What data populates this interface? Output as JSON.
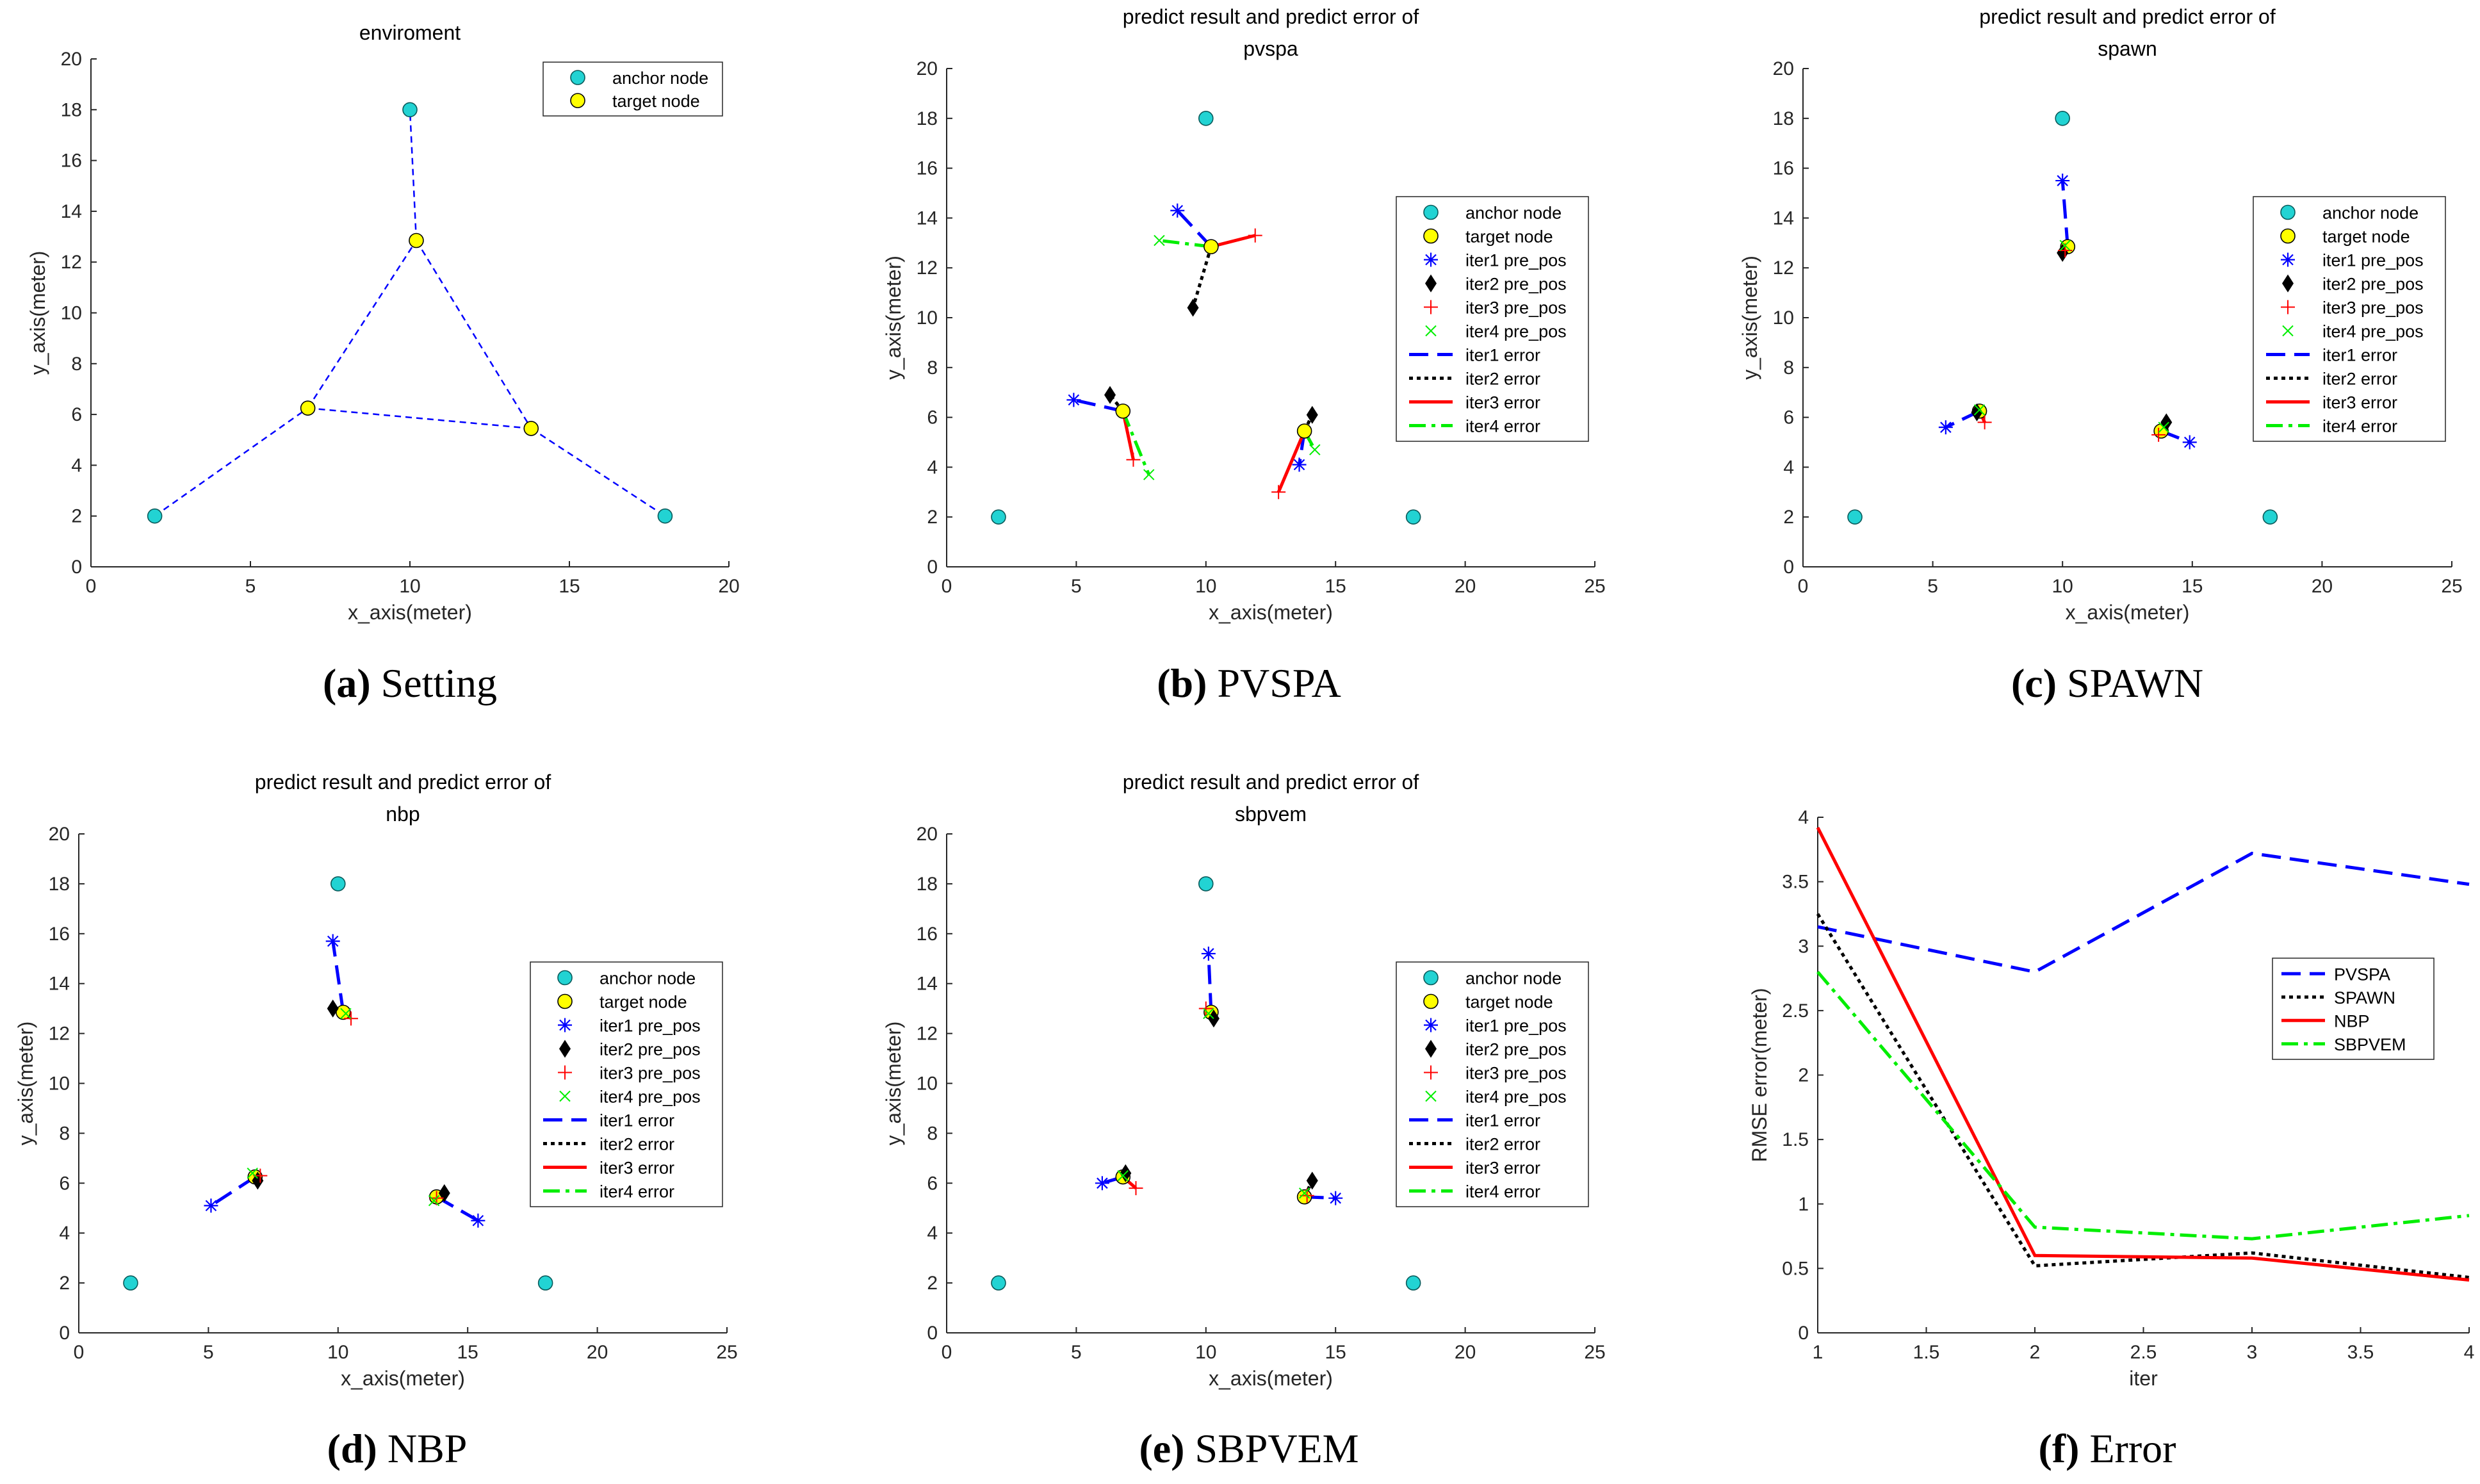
{
  "figure": {
    "captions": [
      {
        "letter": "(a)",
        "name": "Setting"
      },
      {
        "letter": "(b)",
        "name": "PVSPA"
      },
      {
        "letter": "(c)",
        "name": "SPAWN"
      },
      {
        "letter": "(d)",
        "name": "NBP"
      },
      {
        "letter": "(e)",
        "name": "SBPVEM"
      },
      {
        "letter": "(f)",
        "name": "Error"
      }
    ]
  },
  "styles": {
    "anchor_color": "#22d3d3",
    "target_color": "#ffff00",
    "iter1_color": "#0000ff",
    "iter2_color": "#000000",
    "iter3_color": "#ff0000",
    "iter4_color": "#00ee00"
  },
  "chart_data": [
    {
      "id": "a",
      "type": "scatter",
      "title": [
        "enviroment"
      ],
      "xlabel": "x_axis(meter)",
      "ylabel": "y_axis(meter)",
      "xlim": [
        0,
        20
      ],
      "ylim": [
        0,
        20
      ],
      "xticks": [
        0,
        5,
        10,
        15,
        20
      ],
      "yticks": [
        0,
        2,
        4,
        6,
        8,
        10,
        12,
        14,
        16,
        18,
        20
      ],
      "legend_position": "top-right",
      "legend": [
        {
          "label": "anchor node",
          "kind": "anchor"
        },
        {
          "label": "target node",
          "kind": "target"
        }
      ],
      "anchors": [
        [
          2,
          2
        ],
        [
          10,
          18
        ],
        [
          18,
          2
        ]
      ],
      "targets": [
        [
          6.8,
          6.25
        ],
        [
          10.2,
          12.85
        ],
        [
          13.8,
          5.45
        ]
      ],
      "connections": [
        [
          [
            2,
            2
          ],
          [
            6.8,
            6.25
          ]
        ],
        [
          [
            6.8,
            6.25
          ],
          [
            10.2,
            12.85
          ]
        ],
        [
          [
            10.2,
            12.85
          ],
          [
            10,
            18
          ]
        ],
        [
          [
            10.2,
            12.85
          ],
          [
            13.8,
            5.45
          ]
        ],
        [
          [
            6.8,
            6.25
          ],
          [
            13.8,
            5.45
          ]
        ],
        [
          [
            13.8,
            5.45
          ],
          [
            18,
            2
          ]
        ]
      ]
    },
    {
      "id": "b",
      "type": "scatter",
      "title": [
        "predict result and predict error of",
        "pvspa"
      ],
      "xlabel": "x_axis(meter)",
      "ylabel": "y_axis(meter)",
      "xlim": [
        0,
        25
      ],
      "ylim": [
        0,
        20
      ],
      "xticks": [
        0,
        5,
        10,
        15,
        20,
        25
      ],
      "yticks": [
        0,
        2,
        4,
        6,
        8,
        10,
        12,
        14,
        16,
        18,
        20
      ],
      "legend_position": "right",
      "legend": [
        {
          "label": "anchor node",
          "kind": "anchor"
        },
        {
          "label": "target node",
          "kind": "target"
        },
        {
          "label": "iter1 pre_pos",
          "kind": "iter1"
        },
        {
          "label": "iter2 pre_pos",
          "kind": "iter2"
        },
        {
          "label": "iter3 pre_pos",
          "kind": "iter3"
        },
        {
          "label": "iter4 pre_pos",
          "kind": "iter4"
        },
        {
          "label": "iter1 error",
          "kind": "err1"
        },
        {
          "label": "iter2 error",
          "kind": "err2"
        },
        {
          "label": "iter3 error",
          "kind": "err3"
        },
        {
          "label": "iter4 error",
          "kind": "err4"
        }
      ],
      "anchors": [
        [
          2,
          2
        ],
        [
          10,
          18
        ],
        [
          18,
          2
        ]
      ],
      "targets": [
        [
          6.8,
          6.25
        ],
        [
          10.2,
          12.85
        ],
        [
          13.8,
          5.45
        ]
      ],
      "iterations": [
        [
          [
            4.9,
            6.7
          ],
          [
            8.9,
            14.3
          ],
          [
            13.6,
            4.1
          ]
        ],
        [
          [
            6.3,
            6.9
          ],
          [
            9.5,
            10.4
          ],
          [
            14.1,
            6.1
          ]
        ],
        [
          [
            7.2,
            4.3
          ],
          [
            11.9,
            13.3
          ],
          [
            12.8,
            3.0
          ]
        ],
        [
          [
            7.8,
            3.7
          ],
          [
            8.2,
            13.1
          ],
          [
            14.2,
            4.7
          ]
        ]
      ]
    },
    {
      "id": "c",
      "type": "scatter",
      "title": [
        "predict result and predict error of",
        "spawn"
      ],
      "xlabel": "x_axis(meter)",
      "ylabel": "y_axis(meter)",
      "xlim": [
        0,
        25
      ],
      "ylim": [
        0,
        20
      ],
      "xticks": [
        0,
        5,
        10,
        15,
        20,
        25
      ],
      "yticks": [
        0,
        2,
        4,
        6,
        8,
        10,
        12,
        14,
        16,
        18,
        20
      ],
      "legend_position": "right",
      "legend": [
        {
          "label": "anchor node",
          "kind": "anchor"
        },
        {
          "label": "target node",
          "kind": "target"
        },
        {
          "label": "iter1 pre_pos",
          "kind": "iter1"
        },
        {
          "label": "iter2 pre_pos",
          "kind": "iter2"
        },
        {
          "label": "iter3 pre_pos",
          "kind": "iter3"
        },
        {
          "label": "iter4 pre_pos",
          "kind": "iter4"
        },
        {
          "label": "iter1 error",
          "kind": "err1"
        },
        {
          "label": "iter2 error",
          "kind": "err2"
        },
        {
          "label": "iter3 error",
          "kind": "err3"
        },
        {
          "label": "iter4 error",
          "kind": "err4"
        }
      ],
      "anchors": [
        [
          2,
          2
        ],
        [
          10,
          18
        ],
        [
          18,
          2
        ]
      ],
      "targets": [
        [
          6.8,
          6.25
        ],
        [
          10.2,
          12.85
        ],
        [
          13.8,
          5.45
        ]
      ],
      "iterations": [
        [
          [
            5.5,
            5.6
          ],
          [
            10.0,
            15.5
          ],
          [
            14.9,
            5.0
          ]
        ],
        [
          [
            6.7,
            6.2
          ],
          [
            10.0,
            12.6
          ],
          [
            14.0,
            5.8
          ]
        ],
        [
          [
            7.0,
            5.8
          ],
          [
            10.1,
            12.7
          ],
          [
            13.7,
            5.3
          ]
        ],
        [
          [
            6.8,
            6.3
          ],
          [
            10.1,
            12.9
          ],
          [
            13.9,
            5.6
          ]
        ]
      ]
    },
    {
      "id": "d",
      "type": "scatter",
      "title": [
        "predict result and predict error of",
        "nbp"
      ],
      "xlabel": "x_axis(meter)",
      "ylabel": "y_axis(meter)",
      "xlim": [
        0,
        25
      ],
      "ylim": [
        0,
        20
      ],
      "xticks": [
        0,
        5,
        10,
        15,
        20,
        25
      ],
      "yticks": [
        0,
        2,
        4,
        6,
        8,
        10,
        12,
        14,
        16,
        18,
        20
      ],
      "legend_position": "right",
      "legend": [
        {
          "label": "anchor node",
          "kind": "anchor"
        },
        {
          "label": "target node",
          "kind": "target"
        },
        {
          "label": "iter1 pre_pos",
          "kind": "iter1"
        },
        {
          "label": "iter2 pre_pos",
          "kind": "iter2"
        },
        {
          "label": "iter3 pre_pos",
          "kind": "iter3"
        },
        {
          "label": "iter4 pre_pos",
          "kind": "iter4"
        },
        {
          "label": "iter1 error",
          "kind": "err1"
        },
        {
          "label": "iter2 error",
          "kind": "err2"
        },
        {
          "label": "iter3 error",
          "kind": "err3"
        },
        {
          "label": "iter4 error",
          "kind": "err4"
        }
      ],
      "anchors": [
        [
          2,
          2
        ],
        [
          10,
          18
        ],
        [
          18,
          2
        ]
      ],
      "targets": [
        [
          6.8,
          6.25
        ],
        [
          10.2,
          12.85
        ],
        [
          13.8,
          5.45
        ]
      ],
      "iterations": [
        [
          [
            5.1,
            5.1
          ],
          [
            9.8,
            15.7
          ],
          [
            15.4,
            4.5
          ]
        ],
        [
          [
            6.9,
            6.1
          ],
          [
            9.8,
            13.0
          ],
          [
            14.1,
            5.6
          ]
        ],
        [
          [
            7.0,
            6.3
          ],
          [
            10.5,
            12.6
          ],
          [
            13.8,
            5.4
          ]
        ],
        [
          [
            6.7,
            6.4
          ],
          [
            10.3,
            12.8
          ],
          [
            13.7,
            5.3
          ]
        ]
      ]
    },
    {
      "id": "e",
      "type": "scatter",
      "title": [
        "predict result and predict error of",
        "sbpvem"
      ],
      "xlabel": "x_axis(meter)",
      "ylabel": "y_axis(meter)",
      "xlim": [
        0,
        25
      ],
      "ylim": [
        0,
        20
      ],
      "xticks": [
        0,
        5,
        10,
        15,
        20,
        25
      ],
      "yticks": [
        0,
        2,
        4,
        6,
        8,
        10,
        12,
        14,
        16,
        18,
        20
      ],
      "legend_position": "right",
      "legend": [
        {
          "label": "anchor node",
          "kind": "anchor"
        },
        {
          "label": "target node",
          "kind": "target"
        },
        {
          "label": "iter1 pre_pos",
          "kind": "iter1"
        },
        {
          "label": "iter2 pre_pos",
          "kind": "iter2"
        },
        {
          "label": "iter3 pre_pos",
          "kind": "iter3"
        },
        {
          "label": "iter4 pre_pos",
          "kind": "iter4"
        },
        {
          "label": "iter1 error",
          "kind": "err1"
        },
        {
          "label": "iter2 error",
          "kind": "err2"
        },
        {
          "label": "iter3 error",
          "kind": "err3"
        },
        {
          "label": "iter4 error",
          "kind": "err4"
        }
      ],
      "anchors": [
        [
          2,
          2
        ],
        [
          10,
          18
        ],
        [
          18,
          2
        ]
      ],
      "targets": [
        [
          6.8,
          6.25
        ],
        [
          10.2,
          12.85
        ],
        [
          13.8,
          5.45
        ]
      ],
      "iterations": [
        [
          [
            6.0,
            6.0
          ],
          [
            10.1,
            15.2
          ],
          [
            15.0,
            5.4
          ]
        ],
        [
          [
            6.9,
            6.4
          ],
          [
            10.3,
            12.6
          ],
          [
            14.1,
            6.1
          ]
        ],
        [
          [
            7.3,
            5.8
          ],
          [
            10.0,
            13.0
          ],
          [
            13.9,
            5.5
          ]
        ],
        [
          [
            6.8,
            6.3
          ],
          [
            10.1,
            12.8
          ],
          [
            13.8,
            5.6
          ]
        ]
      ]
    },
    {
      "id": "f",
      "type": "line",
      "title": [],
      "xlabel": "iter",
      "ylabel": "RMSE error(meter)",
      "xlim": [
        1,
        4
      ],
      "ylim": [
        0,
        4
      ],
      "xticks": [
        1,
        1.5,
        2,
        2.5,
        3,
        3.5,
        4
      ],
      "yticks": [
        0,
        0.5,
        1,
        1.5,
        2,
        2.5,
        3,
        3.5,
        4
      ],
      "legend_position": "center-right",
      "x": [
        1,
        2,
        3,
        4
      ],
      "series": [
        {
          "name": "PVSPA",
          "values": [
            3.15,
            2.8,
            3.72,
            3.48
          ],
          "kind": "err1"
        },
        {
          "name": "SPAWN",
          "values": [
            3.25,
            0.52,
            0.62,
            0.43
          ],
          "kind": "err2"
        },
        {
          "name": "NBP",
          "values": [
            3.92,
            0.6,
            0.58,
            0.41
          ],
          "kind": "err3"
        },
        {
          "name": "SBPVEM",
          "values": [
            2.8,
            0.82,
            0.73,
            0.91
          ],
          "kind": "err4"
        }
      ]
    }
  ]
}
